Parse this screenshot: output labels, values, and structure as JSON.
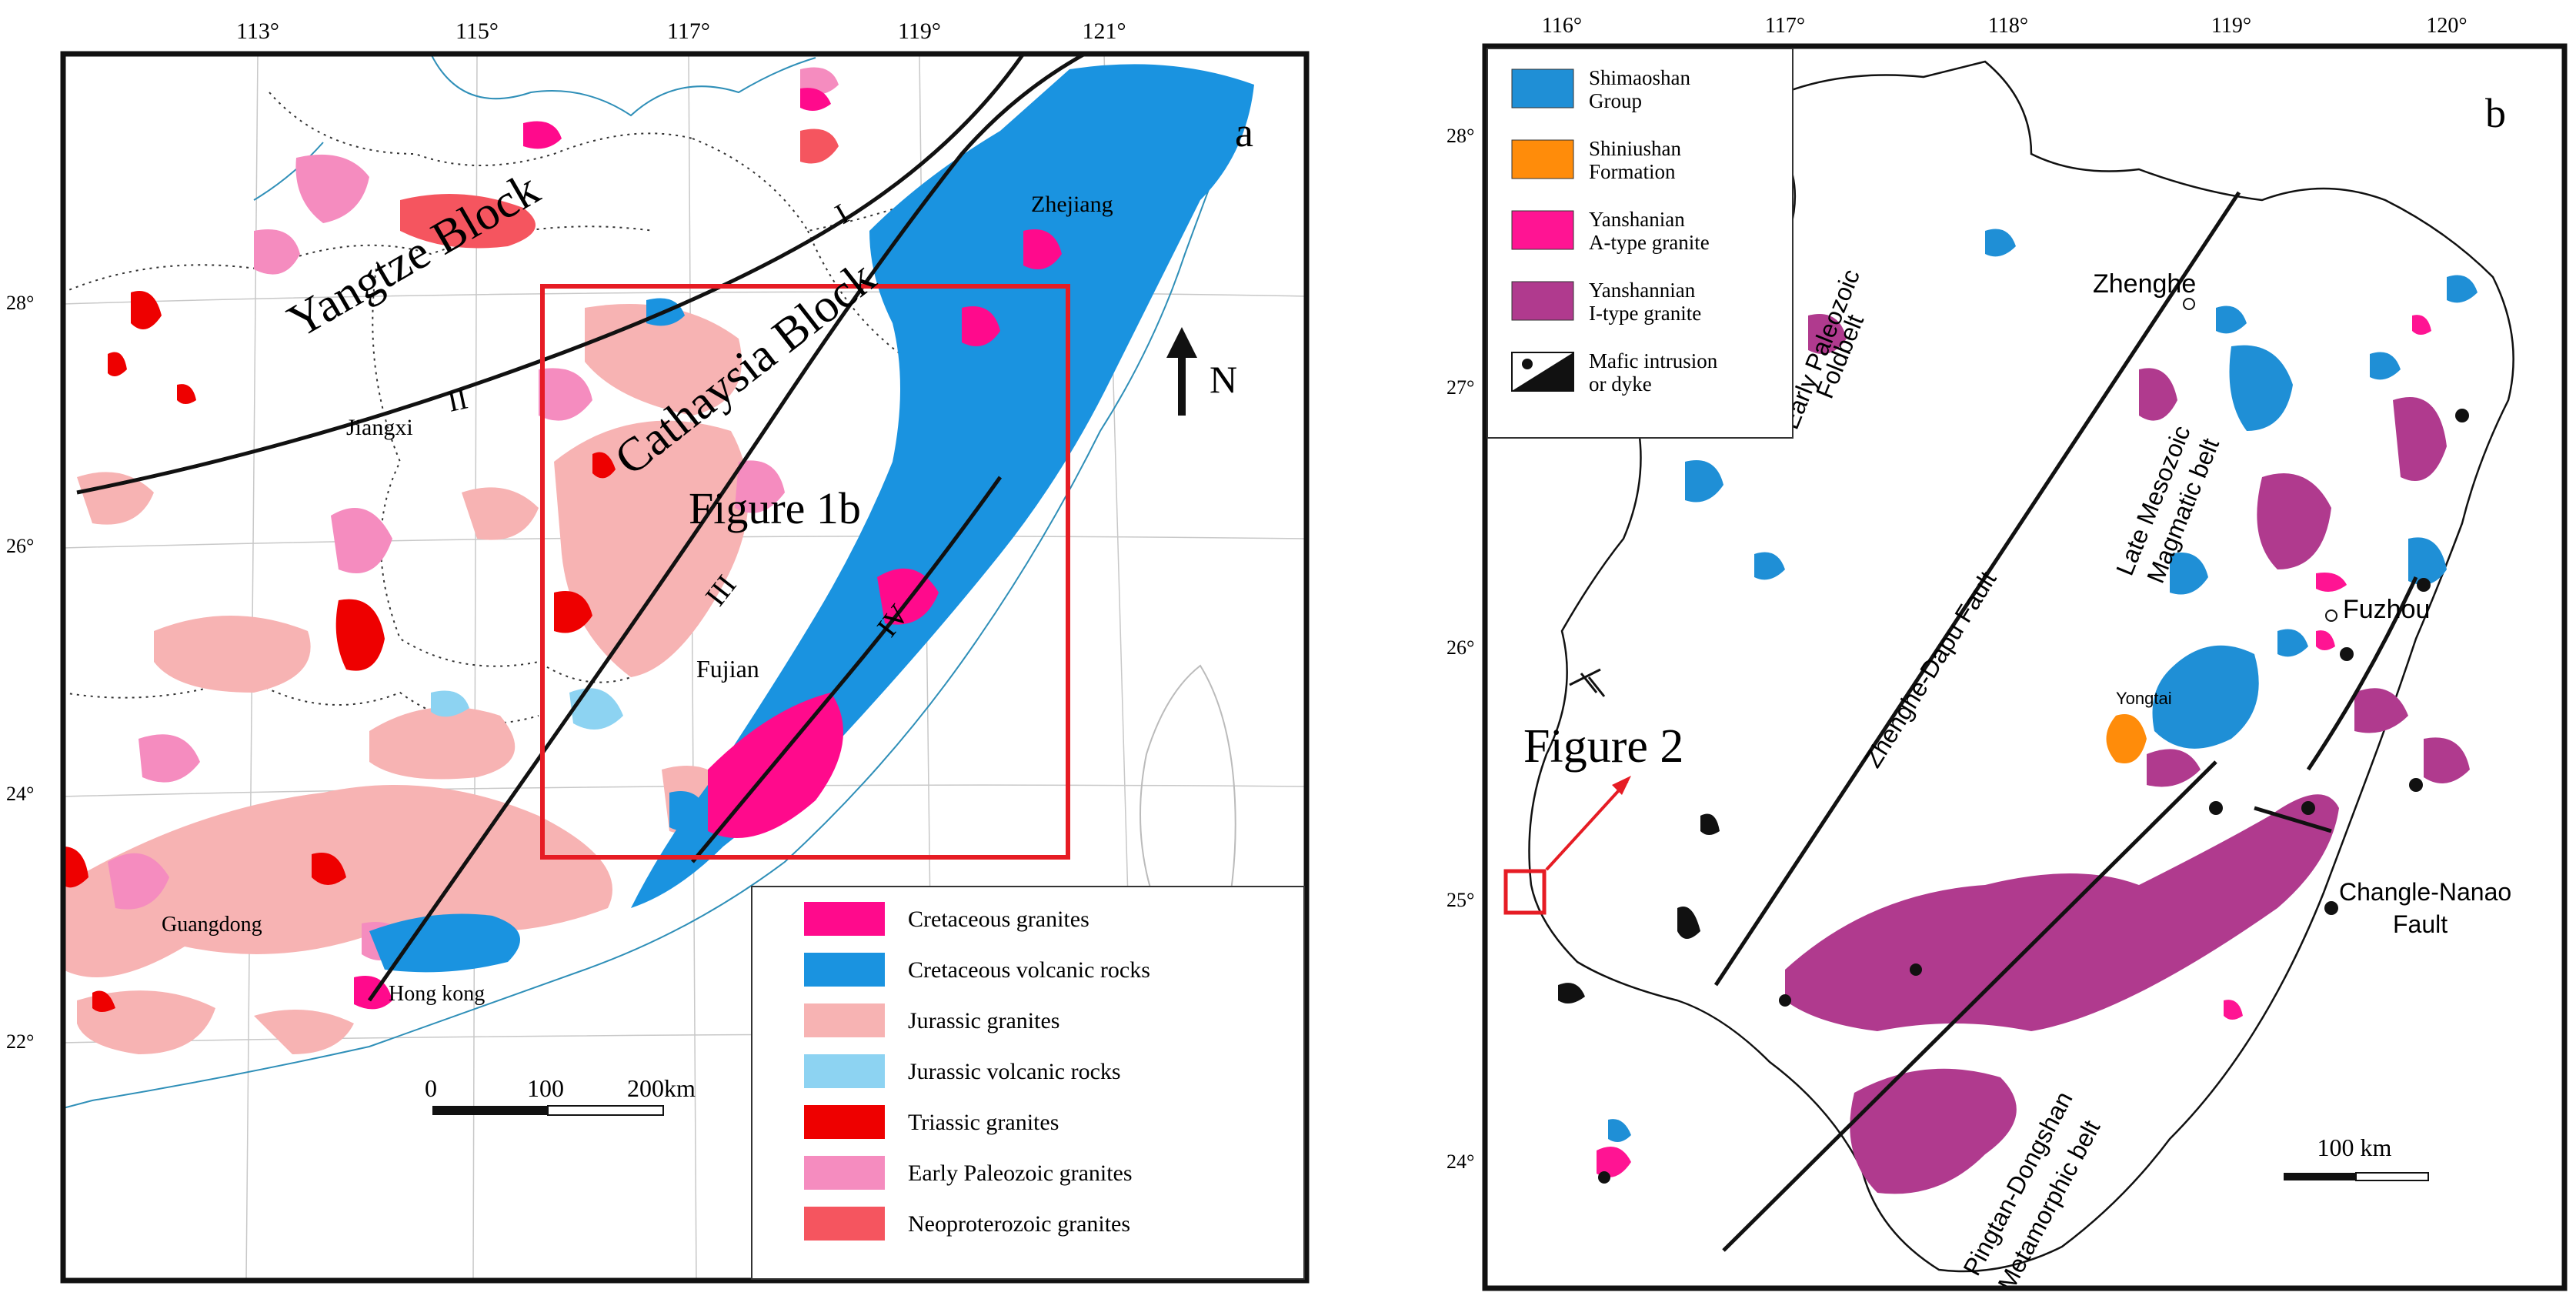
{
  "panel_a": {
    "letter": "a",
    "top_ticks": [
      "113°",
      "115°",
      "117°",
      "119°",
      "121°"
    ],
    "left_ticks": [
      "28°",
      "26°",
      "24°",
      "22°"
    ],
    "blocks": {
      "yangtze": "Yangtze Block",
      "cathaysia": "Cathaysia Block"
    },
    "fault_labels": [
      "I",
      "II",
      "III",
      "IV"
    ],
    "provinces": {
      "zhejiang": "Zhejiang",
      "jiangxi": "Jiangxi",
      "fujian": "Fujian",
      "guangdong": "Guangdong",
      "hongkong": "Hong kong"
    },
    "inset_label": "Figure 1b",
    "north": "N",
    "scale": {
      "zero": "0",
      "mid": "100",
      "end": "200km"
    },
    "legend": [
      {
        "label": "Cretaceous granites",
        "color": "#ff0a8c"
      },
      {
        "label": "Cretaceous volcanic rocks",
        "color": "#1a93e0"
      },
      {
        "label": "Jurassic granites",
        "color": "#f7b3b3"
      },
      {
        "label": "Jurassic volcanic rocks",
        "color": "#8dd3f2"
      },
      {
        "label": "Triassic granites",
        "color": "#ee0000"
      },
      {
        "label": "Early Paleozoic granites",
        "color": "#f58cbf"
      },
      {
        "label": "Neoproterozoic granites",
        "color": "#f5555f"
      }
    ]
  },
  "panel_b": {
    "letter": "b",
    "top_ticks": [
      "116°",
      "117°",
      "118°",
      "119°",
      "120°"
    ],
    "left_ticks": [
      "28°",
      "27°",
      "26°",
      "25°",
      "24°"
    ],
    "legend": [
      {
        "line1": "Shimaoshan",
        "line2": "Group",
        "color": "#1f8fd6"
      },
      {
        "line1": "Shiniushan",
        "line2": "Formation",
        "color": "#ff8c0a"
      },
      {
        "line1": "Yanshanian",
        "line2": "A-type granite",
        "color": "#ff1493"
      },
      {
        "line1": "Yanshannian",
        "line2": "I-type granite",
        "color": "#b03a8e"
      },
      {
        "line1": "Mafic intrusion",
        "line2": "or dyke",
        "color": "#111111"
      }
    ],
    "labels": {
      "foldbelt_1": "Early Paleozoic",
      "foldbelt_2": "Foldbelt",
      "fault_zd": "Zhenghe-Dapu Fault",
      "magmatic_1": "Late Mesozoic",
      "magmatic_2": "Magmatic belt",
      "zhenghe": "Zhenghe",
      "fuzhou": "Fuzhou",
      "yongtai": "Yongtai",
      "figure2": "Figure 2",
      "changle_1": "Changle-Nanao",
      "changle_2": "Fault",
      "pingtan_1": "Pingtan-Dongshan",
      "pingtan_2": "Metamorphic belt"
    },
    "scale": "100 km"
  }
}
